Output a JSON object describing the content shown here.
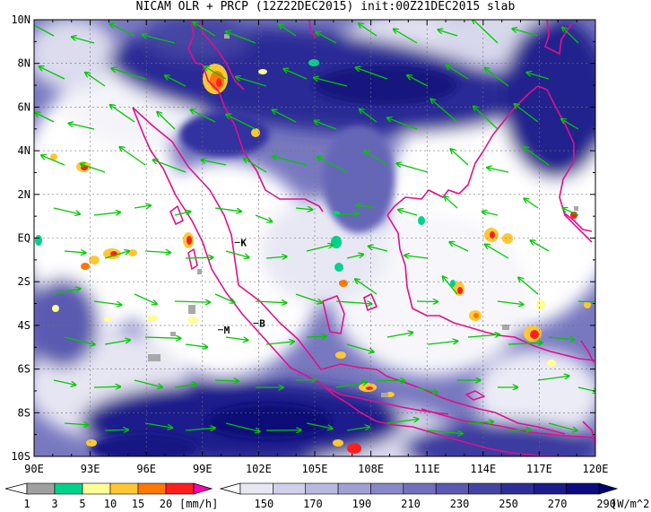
{
  "title": "NICAM OLR + PRCP (12Z22DEC2015) init:00Z21DEC2015 slab",
  "map": {
    "lon_labels": [
      "90E",
      "93E",
      "96E",
      "99E",
      "102E",
      "105E",
      "108E",
      "111E",
      "114E",
      "117E",
      "120E"
    ],
    "lat_labels": [
      "10N",
      "8N",
      "6N",
      "4N",
      "2N",
      "EQ",
      "2S",
      "4S",
      "6S",
      "8S",
      "10S"
    ],
    "markers": [
      {
        "label": "K",
        "lon": 101.2,
        "lat": -0.2
      },
      {
        "label": "M",
        "lon": 100.3,
        "lat": -4.2
      },
      {
        "label": "B",
        "lon": 102.2,
        "lat": -3.9
      }
    ],
    "wind_vector_color": "#00c800",
    "coastline_color": "#e0108c"
  },
  "prcp_colorbar": {
    "tick_labels": [
      "1",
      "3",
      "5",
      "10",
      "15",
      "20"
    ],
    "unit": "[mm/h]",
    "colors": [
      "#ffffff",
      "#a0a0a0",
      "#00d28c",
      "#ffff96",
      "#ffc832",
      "#ff7800",
      "#ff1e1e",
      "#ff00b4"
    ]
  },
  "olr_colorbar": {
    "tick_labels": [
      "150",
      "170",
      "190",
      "210",
      "230",
      "250",
      "270",
      "290"
    ],
    "unit": "[W/m^2]",
    "colors": [
      "#ffffff",
      "#e8e8f4",
      "#d0d0ec",
      "#b8b8e0",
      "#a0a0d4",
      "#8888c8",
      "#7070bc",
      "#5a5ab0",
      "#4444a4",
      "#2e2e98",
      "#1c1c8c",
      "#0c0c80",
      "#00006e"
    ]
  }
}
